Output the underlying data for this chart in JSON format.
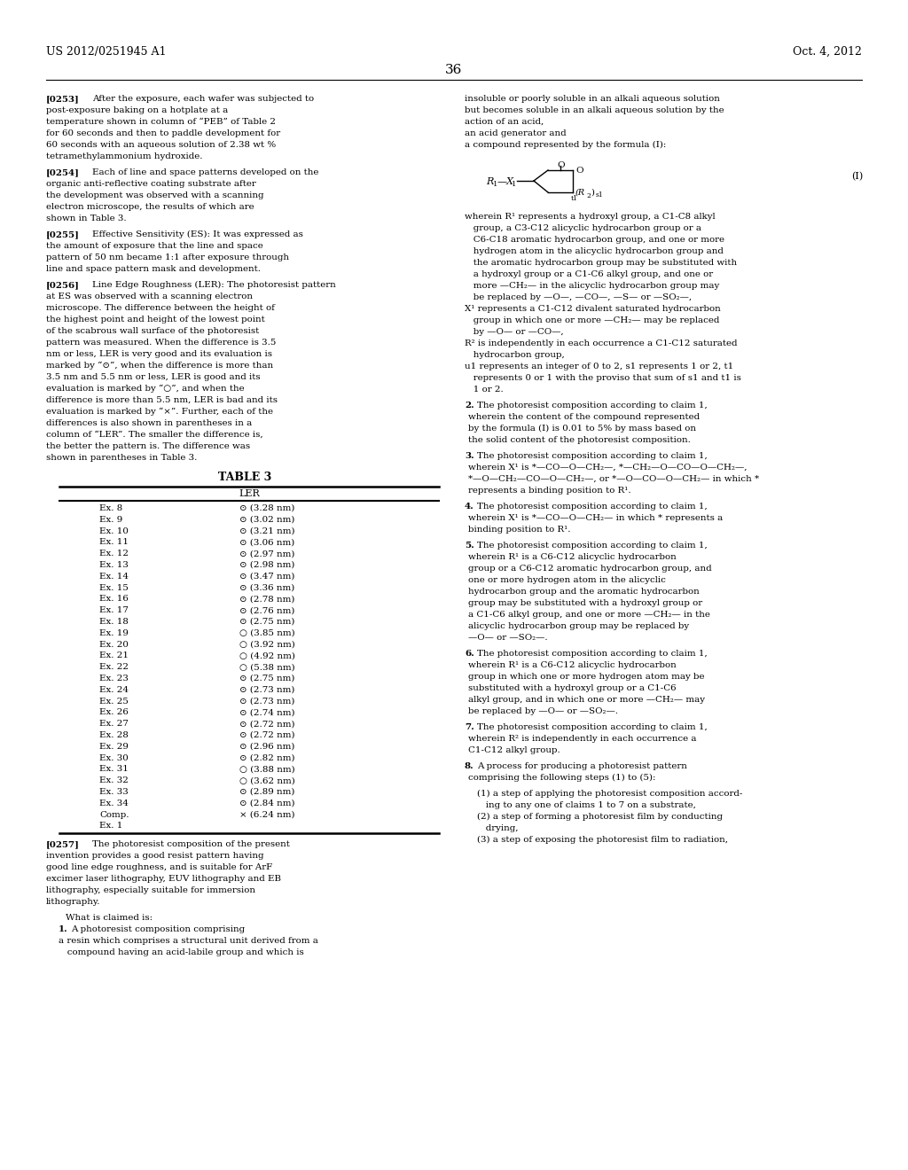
{
  "page_number": "36",
  "patent_number": "US 2012/0251945 A1",
  "patent_date": "Oct. 4, 2012",
  "background_color": "#ffffff",
  "left_paragraphs": [
    {
      "tag": "[0253]",
      "text": "After the exposure, each wafer was subjected to post-exposure baking on a hotplate at a temperature shown in column of “PEB” of Table 2 for 60 seconds and then to paddle development for 60 seconds with an aqueous solution of 2.38 wt % tetramethylammonium hydroxide."
    },
    {
      "tag": "[0254]",
      "text": "Each of line and space patterns developed on the organic anti-reflective coating substrate after the development was observed with a scanning electron microscope, the results of which are shown in Table 3."
    },
    {
      "tag": "[0255]",
      "text": "Effective Sensitivity (ES): It was expressed as the amount of exposure that the line and space pattern of 50 nm became 1:1 after exposure through line and space pattern mask and development."
    },
    {
      "tag": "[0256]",
      "text": "Line Edge Roughness (LER): The photoresist pattern at ES was observed with a scanning electron microscope. The difference between the height of the highest point and height of the lowest point of the scabrous wall surface of the photoresist pattern was measured. When the difference is 3.5 nm or less, LER is very good and its evaluation is marked by “⊙”, when the difference is more than 3.5 nm and 5.5 nm or less, LER is good and its evaluation is marked by “○”, and when the difference is more than 5.5 nm, LER is bad and its evaluation is marked by “×”. Further, each of the differences is also shown in parentheses in a column of “LER”. The smaller the difference is, the better the pattern is. The difference was shown in parentheses in Table 3."
    }
  ],
  "table_title": "TABLE 3",
  "table_header": "LER",
  "table_rows": [
    {
      "label": "Ex. 8",
      "symbol": "⊙",
      "value": "(3.28 nm)"
    },
    {
      "label": "Ex. 9",
      "symbol": "⊙",
      "value": "(3.02 nm)"
    },
    {
      "label": "Ex. 10",
      "symbol": "⊙",
      "value": "(3.21 nm)"
    },
    {
      "label": "Ex. 11",
      "symbol": "⊙",
      "value": "(3.06 nm)"
    },
    {
      "label": "Ex. 12",
      "symbol": "⊙",
      "value": "(2.97 nm)"
    },
    {
      "label": "Ex. 13",
      "symbol": "⊙",
      "value": "(2.98 nm)"
    },
    {
      "label": "Ex. 14",
      "symbol": "⊙",
      "value": "(3.47 nm)"
    },
    {
      "label": "Ex. 15",
      "symbol": "⊙",
      "value": "(3.36 nm)"
    },
    {
      "label": "Ex. 16",
      "symbol": "⊙",
      "value": "(2.78 nm)"
    },
    {
      "label": "Ex. 17",
      "symbol": "⊙",
      "value": "(2.76 nm)"
    },
    {
      "label": "Ex. 18",
      "symbol": "⊙",
      "value": "(2.75 nm)"
    },
    {
      "label": "Ex. 19",
      "symbol": "○",
      "value": "(3.85 nm)"
    },
    {
      "label": "Ex. 20",
      "symbol": "○",
      "value": "(3.92 nm)"
    },
    {
      "label": "Ex. 21",
      "symbol": "○",
      "value": "(4.92 nm)"
    },
    {
      "label": "Ex. 22",
      "symbol": "○",
      "value": "(5.38 nm)"
    },
    {
      "label": "Ex. 23",
      "symbol": "⊙",
      "value": "(2.75 nm)"
    },
    {
      "label": "Ex. 24",
      "symbol": "⊙",
      "value": "(2.73 nm)"
    },
    {
      "label": "Ex. 25",
      "symbol": "⊙",
      "value": "(2.73 nm)"
    },
    {
      "label": "Ex. 26",
      "symbol": "⊙",
      "value": "(2.74 nm)"
    },
    {
      "label": "Ex. 27",
      "symbol": "⊙",
      "value": "(2.72 nm)"
    },
    {
      "label": "Ex. 28",
      "symbol": "⊙",
      "value": "(2.72 nm)"
    },
    {
      "label": "Ex. 29",
      "symbol": "⊙",
      "value": "(2.96 nm)"
    },
    {
      "label": "Ex. 30",
      "symbol": "⊙",
      "value": "(2.82 nm)"
    },
    {
      "label": "Ex. 31",
      "symbol": "○",
      "value": "(3.88 nm)"
    },
    {
      "label": "Ex. 32",
      "symbol": "○",
      "value": "(3.62 nm)"
    },
    {
      "label": "Ex. 33",
      "symbol": "⊙",
      "value": "(2.89 nm)"
    },
    {
      "label": "Ex. 34",
      "symbol": "⊙",
      "value": "(2.84 nm)"
    },
    {
      "label": "Comp.",
      "label2": "Ex. 1",
      "symbol": "×",
      "value": "(6.24 nm)"
    }
  ],
  "para_0257": {
    "tag": "[0257]",
    "text": "The photoresist composition of the present invention provides a good resist pattern having good line edge roughness, and is suitable for ArF excimer laser lithography, EUV lithography and EB lithography, especially suitable for immersion lithography."
  },
  "claims_header": "What is claimed is:",
  "claim1_title": "1. A photoresist composition comprising",
  "claim1_lines": [
    "a resin which comprises a structural unit derived from a",
    "   compound having an acid-labile group and which is"
  ],
  "right_intro": [
    "insoluble or poorly soluble in an alkali aqueous solution",
    "but becomes soluble in an alkali aqueous solution by the",
    "action of an acid,",
    "an acid generator and",
    "a compound represented by the formula (I):"
  ],
  "formula_desc": [
    "wherein R¹ represents a hydroxyl group, a C1-C8 alkyl",
    "   group, a C3-C12 alicyclic hydrocarbon group or a",
    "   C6-C18 aromatic hydrocarbon group, and one or more",
    "   hydrogen atom in the alicyclic hydrocarbon group and",
    "   the aromatic hydrocarbon group may be substituted with",
    "   a hydroxyl group or a C1-C6 alkyl group, and one or",
    "   more —CH₂— in the alicyclic hydrocarbon group may",
    "   be replaced by —O—, —CO—, —S— or —SO₂—,",
    "X¹ represents a C1-C12 divalent saturated hydrocarbon",
    "   group in which one or more —CH₂— may be replaced",
    "   by —O— or —CO—,",
    "R² is independently in each occurrence a C1-C12 saturated",
    "   hydrocarbon group,",
    "u1 represents an integer of 0 to 2, s1 represents 1 or 2, t1",
    "   represents 0 or 1 with the proviso that sum of s1 and t1 is",
    "   1 or 2."
  ],
  "claims_right": [
    {
      "number": "2",
      "text": "The photoresist composition according to claim 1, wherein the content of the compound represented by the formula (I) is 0.01 to 5% by mass based on the solid content of the photoresist composition."
    },
    {
      "number": "3",
      "text": "The photoresist composition according to claim 1, wherein X¹ is *—CO—O—CH₂—, *—CH₂—O—CO—O—CH₂—, *—O—CH₂—CO—O—CH₂—, or *—O—CO—O—CH₂— in which * represents a binding position to R¹."
    },
    {
      "number": "4",
      "text": "The photoresist composition according to claim 1, wherein X¹ is *—CO—O—CH₂— in which * represents a binding position to R¹."
    },
    {
      "number": "5",
      "text": "The photoresist composition according to claim 1, wherein R¹ is a C6-C12 alicyclic hydrocarbon group or a C6-C12 aromatic hydrocarbon group, and one or more hydrogen atom in the alicyclic hydrocarbon group and the aromatic hydrocarbon group may be substituted with a hydroxyl group or a C1-C6 alkyl group, and one or more —CH₂— in the alicyclic hydrocarbon group may be replaced by —O— or —SO₂—."
    },
    {
      "number": "6",
      "text": "The photoresist composition according to claim 1, wherein R¹ is a C6-C12 alicyclic hydrocarbon group in which one or more hydrogen atom may be substituted with a hydroxyl group or a C1-C6 alkyl group, and in which one or more —CH₂— may be replaced by —O— or —SO₂—."
    },
    {
      "number": "7",
      "text": "The photoresist composition according to claim 1, wherein R² is independently in each occurrence a C1-C12 alkyl group."
    },
    {
      "number": "8",
      "text": "A process for producing a photoresist pattern comprising the following steps (1) to (5):"
    }
  ],
  "claim8_steps": [
    "(1) a step of applying the photoresist composition accord-",
    "   ing to any one of claims 1 to 7 on a substrate,",
    "(2) a step of forming a photoresist film by conducting",
    "   drying,",
    "(3) a step of exposing the photoresist film to radiation,"
  ]
}
